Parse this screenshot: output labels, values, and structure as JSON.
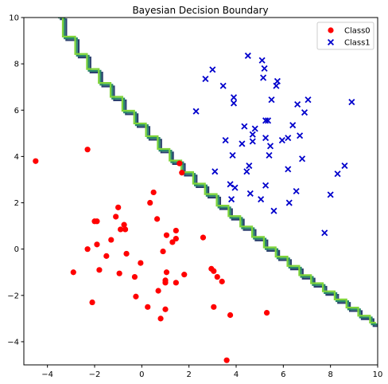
{
  "chart_data": {
    "type": "scatter",
    "title": "Bayesian Decision Boundary",
    "xlabel": "",
    "ylabel": "",
    "xlim": [
      -5,
      10
    ],
    "ylim": [
      -5,
      10
    ],
    "x_ticks": [
      -4,
      -2,
      0,
      2,
      4,
      6,
      8,
      10
    ],
    "y_ticks": [
      -4,
      -2,
      0,
      2,
      4,
      6,
      8,
      10
    ],
    "grid": false,
    "legend_position": "top-right",
    "series": [
      {
        "name": "Class0",
        "marker": "circle",
        "color": "#ff0000",
        "points": [
          [
            -4.5,
            3.8
          ],
          [
            -2.3,
            4.3
          ],
          [
            -2.9,
            -1.0
          ],
          [
            -2.3,
            0.0
          ],
          [
            -2.1,
            -2.3
          ],
          [
            -2.0,
            1.2
          ],
          [
            -1.9,
            1.2
          ],
          [
            -1.9,
            0.2
          ],
          [
            -1.8,
            -0.9
          ],
          [
            -1.5,
            -0.3
          ],
          [
            -1.3,
            0.4
          ],
          [
            -1.1,
            1.4
          ],
          [
            -1.0,
            1.8
          ],
          [
            -0.95,
            -1.05
          ],
          [
            -0.9,
            0.85
          ],
          [
            -0.75,
            1.05
          ],
          [
            -0.7,
            0.85
          ],
          [
            -0.65,
            -0.2
          ],
          [
            -0.3,
            -1.2
          ],
          [
            -0.25,
            -2.05
          ],
          [
            -0.05,
            -0.6
          ],
          [
            0.25,
            -2.5
          ],
          [
            0.35,
            2.0
          ],
          [
            0.5,
            2.45
          ],
          [
            0.65,
            1.3
          ],
          [
            0.7,
            -1.8
          ],
          [
            0.8,
            -3.0
          ],
          [
            0.9,
            -0.1
          ],
          [
            1.0,
            -2.6
          ],
          [
            1.0,
            -1.45
          ],
          [
            1.0,
            -1.35
          ],
          [
            1.05,
            -1.0
          ],
          [
            1.05,
            0.6
          ],
          [
            1.3,
            0.3
          ],
          [
            1.45,
            -1.45
          ],
          [
            1.45,
            0.45
          ],
          [
            1.45,
            0.8
          ],
          [
            1.6,
            3.7
          ],
          [
            1.7,
            3.3
          ],
          [
            1.8,
            -1.1
          ],
          [
            2.6,
            0.5
          ],
          [
            2.95,
            -0.85
          ],
          [
            3.05,
            -0.95
          ],
          [
            3.05,
            -2.5
          ],
          [
            3.2,
            -1.2
          ],
          [
            3.4,
            -1.4
          ],
          [
            3.6,
            -4.8
          ],
          [
            3.75,
            -2.85
          ],
          [
            5.3,
            -2.75
          ]
        ]
      },
      {
        "name": "Class1",
        "marker": "x",
        "color": "#0000cc",
        "points": [
          [
            2.3,
            5.95
          ],
          [
            2.7,
            7.35
          ],
          [
            3.0,
            7.75
          ],
          [
            3.1,
            3.35
          ],
          [
            3.45,
            7.05
          ],
          [
            3.55,
            4.7
          ],
          [
            3.75,
            2.8
          ],
          [
            3.8,
            2.15
          ],
          [
            3.85,
            4.05
          ],
          [
            3.9,
            6.3
          ],
          [
            3.9,
            6.55
          ],
          [
            3.95,
            2.65
          ],
          [
            4.25,
            4.55
          ],
          [
            4.35,
            5.3
          ],
          [
            4.45,
            3.35
          ],
          [
            4.5,
            8.35
          ],
          [
            4.55,
            3.6
          ],
          [
            4.6,
            2.4
          ],
          [
            4.7,
            4.65
          ],
          [
            4.7,
            4.95
          ],
          [
            4.8,
            5.2
          ],
          [
            5.05,
            2.15
          ],
          [
            5.1,
            8.15
          ],
          [
            5.15,
            7.4
          ],
          [
            5.2,
            7.8
          ],
          [
            5.25,
            2.75
          ],
          [
            5.25,
            4.8
          ],
          [
            5.25,
            5.55
          ],
          [
            5.35,
            5.55
          ],
          [
            5.4,
            4.05
          ],
          [
            5.45,
            4.45
          ],
          [
            5.5,
            6.45
          ],
          [
            5.6,
            1.65
          ],
          [
            5.7,
            7.05
          ],
          [
            5.75,
            7.25
          ],
          [
            5.95,
            4.7
          ],
          [
            6.2,
            4.8
          ],
          [
            6.2,
            3.45
          ],
          [
            6.25,
            2.0
          ],
          [
            6.4,
            5.35
          ],
          [
            6.55,
            2.5
          ],
          [
            6.6,
            6.25
          ],
          [
            6.7,
            4.9
          ],
          [
            6.8,
            3.9
          ],
          [
            6.9,
            5.9
          ],
          [
            7.05,
            6.45
          ],
          [
            7.75,
            0.7
          ],
          [
            8.0,
            2.35
          ],
          [
            8.3,
            3.25
          ],
          [
            8.6,
            3.6
          ],
          [
            8.9,
            6.35
          ]
        ]
      }
    ],
    "boundary": {
      "colors": [
        "#2b3f6e",
        "#2a8a6a",
        "#7fd43a"
      ],
      "points": [
        [
          -3.55,
          10.0
        ],
        [
          -3.0,
          9.1
        ],
        [
          -2.5,
          8.35
        ],
        [
          -2.0,
          7.7
        ],
        [
          -1.5,
          7.1
        ],
        [
          -1.0,
          6.5
        ],
        [
          -0.5,
          5.9
        ],
        [
          0.0,
          5.35
        ],
        [
          0.5,
          4.8
        ],
        [
          1.0,
          4.25
        ],
        [
          1.5,
          3.75
        ],
        [
          2.0,
          3.25
        ],
        [
          2.5,
          2.75
        ],
        [
          3.0,
          2.3
        ],
        [
          3.5,
          1.8
        ],
        [
          4.0,
          1.35
        ],
        [
          4.5,
          0.9
        ],
        [
          5.0,
          0.45
        ],
        [
          5.5,
          0.0
        ],
        [
          6.0,
          -0.4
        ],
        [
          6.5,
          -0.8
        ],
        [
          7.0,
          -1.2
        ],
        [
          7.5,
          -1.55
        ],
        [
          8.0,
          -1.9
        ],
        [
          8.5,
          -2.25
        ],
        [
          9.0,
          -2.6
        ],
        [
          9.5,
          -2.95
        ],
        [
          10.0,
          -3.25
        ]
      ]
    }
  }
}
